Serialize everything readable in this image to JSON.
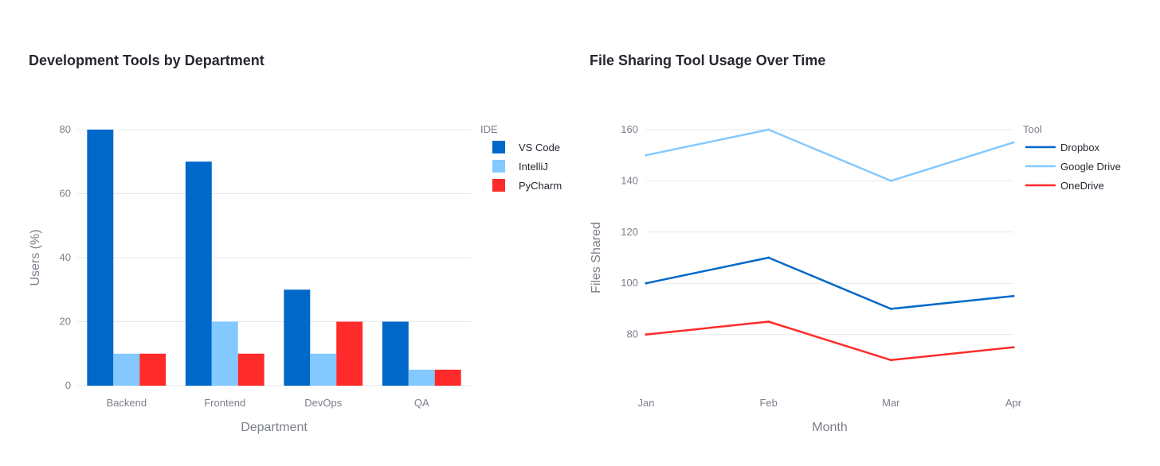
{
  "chart_data": [
    {
      "type": "bar",
      "title": "Development Tools by Department",
      "xlabel": "Department",
      "ylabel": "Users (%)",
      "categories": [
        "Backend",
        "Frontend",
        "DevOps",
        "QA"
      ],
      "yticks": [
        0,
        20,
        40,
        60,
        80
      ],
      "ylim": [
        0,
        80
      ],
      "legend_title": "IDE",
      "legend_position": "right",
      "grid": true,
      "series": [
        {
          "name": "VS Code",
          "color": "#0068c9",
          "values": [
            80,
            70,
            30,
            20
          ]
        },
        {
          "name": "IntelliJ",
          "color": "#83c9ff",
          "values": [
            10,
            20,
            10,
            5
          ]
        },
        {
          "name": "PyCharm",
          "color": "#ff2b2b",
          "values": [
            10,
            10,
            20,
            5
          ]
        }
      ]
    },
    {
      "type": "line",
      "title": "File Sharing Tool Usage Over Time",
      "xlabel": "Month",
      "ylabel": "Files Shared",
      "x": [
        "Jan",
        "Feb",
        "Mar",
        "Apr"
      ],
      "yticks": [
        80,
        100,
        120,
        140,
        160
      ],
      "ylim": [
        60,
        160
      ],
      "legend_title": "Tool",
      "legend_position": "right",
      "grid": true,
      "series": [
        {
          "name": "Dropbox",
          "color": "#0068c9",
          "values": [
            100,
            110,
            90,
            95
          ]
        },
        {
          "name": "Google Drive",
          "color": "#83c9ff",
          "values": [
            150,
            160,
            140,
            155
          ]
        },
        {
          "name": "OneDrive",
          "color": "#ff2b2b",
          "values": [
            80,
            85,
            70,
            75
          ]
        }
      ]
    }
  ]
}
